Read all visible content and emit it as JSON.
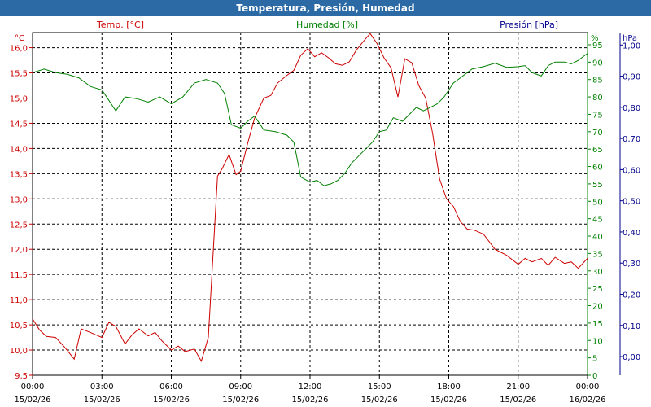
{
  "window": {
    "title": "Temperatura, Presión, Humedad"
  },
  "chart_data": {
    "type": "line",
    "title": "Temperatura, Presión, Humedad",
    "x_ticks": [
      {
        "time": "00:00",
        "date": "15/02/26"
      },
      {
        "time": "03:00",
        "date": "15/02/26"
      },
      {
        "time": "06:00",
        "date": "15/02/26"
      },
      {
        "time": "09:00",
        "date": "15/02/26"
      },
      {
        "time": "12:00",
        "date": "15/02/26"
      },
      {
        "time": "15:00",
        "date": "15/02/26"
      },
      {
        "time": "18:00",
        "date": "15/02/26"
      },
      {
        "time": "21:00",
        "date": "15/02/26"
      },
      {
        "time": "00:00",
        "date": "16/02/26"
      }
    ],
    "x_unit": "hours",
    "xlim": [
      0,
      24
    ],
    "grid": true,
    "axes": {
      "temp": {
        "unit": "°C",
        "label": "Temp. [°C]",
        "color": "#cc0000",
        "ylim": [
          9.5,
          16.3
        ],
        "ticks": [
          "9,5",
          "10,0",
          "10,5",
          "11,0",
          "11,5",
          "12,0",
          "12,5",
          "13,0",
          "13,5",
          "14,0",
          "14,5",
          "15,0",
          "15,5",
          "16,0"
        ]
      },
      "hum": {
        "unit": "%",
        "label": "Humedad [%]",
        "color": "#008000",
        "ylim": [
          0,
          98.5
        ],
        "ticks": [
          "0",
          "5",
          "10",
          "15",
          "20",
          "25",
          "30",
          "35",
          "40",
          "45",
          "50",
          "55",
          "60",
          "65",
          "70",
          "75",
          "80",
          "85",
          "90",
          "95"
        ]
      },
      "pres": {
        "unit": "hPa",
        "label": "Presión [hPa]",
        "color": "#00008b",
        "ylim": [
          -0.06,
          1.04
        ],
        "ticks": [
          "0,00",
          "0,10",
          "0,20",
          "0,30",
          "0,40",
          "0,50",
          "0,60",
          "0,70",
          "0,80",
          "0,90",
          "1,00"
        ]
      }
    },
    "series": [
      {
        "name": "Temp. [°C]",
        "axis": "temp",
        "color": "#cc0000",
        "x": [
          0,
          0.3,
          0.6,
          1,
          1.4,
          1.8,
          2.1,
          2.5,
          3,
          3.3,
          3.6,
          4,
          4.3,
          4.6,
          5,
          5.3,
          5.6,
          6,
          6.3,
          6.6,
          7,
          7.3,
          7.6,
          8,
          8.2,
          8.5,
          8.8,
          9,
          9.3,
          9.6,
          10,
          10.3,
          10.6,
          11,
          11.3,
          11.6,
          11.9,
          12.2,
          12.5,
          12.8,
          13.1,
          13.4,
          13.7,
          14,
          14.3,
          14.6,
          14.9,
          15.2,
          15.5,
          15.8,
          16.1,
          16.4,
          16.7,
          17,
          17.3,
          17.6,
          17.9,
          18.2,
          18.5,
          18.8,
          19.1,
          19.5,
          20,
          20.5,
          21,
          21.3,
          21.6,
          22,
          22.3,
          22.6,
          23,
          23.3,
          23.6,
          24
        ],
        "y": [
          10.62,
          10.4,
          10.27,
          10.25,
          10.05,
          9.82,
          10.42,
          10.35,
          10.25,
          10.55,
          10.47,
          10.12,
          10.3,
          10.42,
          10.28,
          10.35,
          10.18,
          10.0,
          10.08,
          9.97,
          10.02,
          9.78,
          10.25,
          13.45,
          13.6,
          13.88,
          13.48,
          13.55,
          14.1,
          14.6,
          15.0,
          15.05,
          15.3,
          15.45,
          15.55,
          15.85,
          15.98,
          15.82,
          15.9,
          15.8,
          15.68,
          15.65,
          15.72,
          15.95,
          16.12,
          16.28,
          16.08,
          15.8,
          15.6,
          15.02,
          15.78,
          15.7,
          15.25,
          15.0,
          14.3,
          13.4,
          13.0,
          12.85,
          12.55,
          12.4,
          12.38,
          12.3,
          12.0,
          11.88,
          11.7,
          11.82,
          11.75,
          11.82,
          11.68,
          11.84,
          11.72,
          11.75,
          11.62,
          11.82
        ]
      },
      {
        "name": "Humedad [%]",
        "axis": "hum",
        "color": "#008000",
        "x": [
          0,
          0.5,
          1,
          1.5,
          2,
          2.5,
          3,
          3.3,
          3.6,
          4,
          4.5,
          5,
          5.5,
          6,
          6.5,
          7,
          7.5,
          8,
          8.3,
          8.6,
          9,
          9.3,
          9.6,
          10,
          10.5,
          11,
          11.3,
          11.6,
          12,
          12.3,
          12.6,
          12.9,
          13.2,
          13.5,
          13.8,
          14.1,
          14.4,
          14.7,
          15,
          15.3,
          15.6,
          16,
          16.3,
          16.6,
          16.9,
          17.2,
          17.5,
          17.8,
          18.2,
          18.5,
          19,
          19.5,
          20,
          20.5,
          21,
          21.3,
          21.6,
          22,
          22.3,
          22.6,
          23,
          23.3,
          23.6,
          24
        ],
        "y": [
          87,
          88,
          87,
          86.5,
          85.5,
          83,
          82,
          79,
          76,
          80,
          79.5,
          78.5,
          80,
          78,
          80,
          84,
          85,
          84,
          81,
          72,
          71,
          73,
          74.5,
          70.5,
          70,
          69,
          67,
          57,
          55.5,
          56,
          54.5,
          55,
          56,
          58,
          61,
          63,
          65,
          67,
          70,
          70.5,
          74,
          73,
          75,
          77,
          76,
          77,
          78,
          80,
          84,
          85.5,
          88,
          88.7,
          89.7,
          88.5,
          88.7,
          89,
          87,
          86,
          89,
          90,
          90,
          89.5,
          90.5,
          92.5
        ]
      }
    ]
  }
}
